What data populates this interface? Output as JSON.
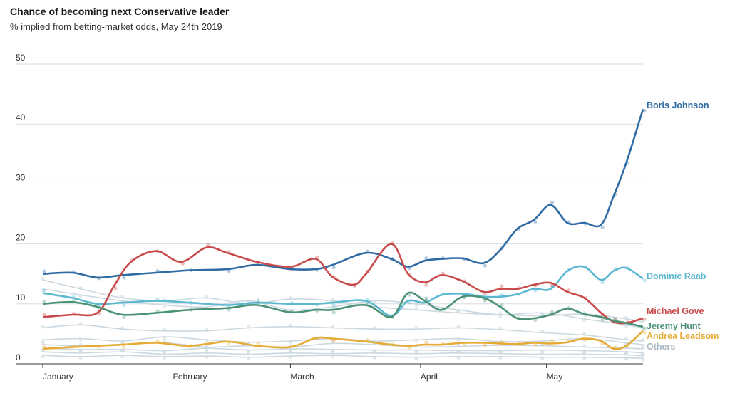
{
  "title": "Chance of becoming next Conservative leader",
  "subtitle": "% implied from betting-market odds, May 24th 2019",
  "chart_data": {
    "type": "line",
    "title": "Chance of becoming next Conservative leader",
    "subtitle": "% implied from betting-market odds, May 24th 2019",
    "x_ticks": [
      "January",
      "February",
      "March",
      "April",
      "May"
    ],
    "x_tick_days": [
      1,
      32,
      60,
      91,
      121
    ],
    "x_range_days": [
      1,
      144
    ],
    "ylim": [
      0,
      50
    ],
    "y_ticks": [
      0,
      10,
      20,
      30,
      40,
      50
    ],
    "grid": true,
    "legend": "direct labels at right end of lines",
    "series": [
      {
        "name": "Boris Johnson",
        "color": "#2e6aa3",
        "x": [
          1,
          8,
          14,
          20,
          28,
          36,
          45,
          52,
          60,
          66,
          70,
          78,
          84,
          88,
          92,
          96,
          101,
          106,
          110,
          114,
          118,
          122,
          126,
          130,
          134,
          137,
          140,
          144
        ],
        "y": [
          15,
          15.2,
          14.4,
          14.8,
          15.2,
          15.6,
          15.8,
          16.5,
          15.8,
          15.8,
          16.5,
          18.5,
          17.5,
          16.2,
          17.2,
          17.5,
          17.6,
          16.8,
          19,
          22.5,
          24,
          26.5,
          23.5,
          23.5,
          23.2,
          28,
          33.5,
          42.5
        ]
      },
      {
        "name": "Dominic Raab",
        "color": "#5bb8d1",
        "x": [
          1,
          8,
          14,
          20,
          28,
          36,
          45,
          52,
          60,
          66,
          70,
          78,
          84,
          88,
          92,
          96,
          101,
          106,
          110,
          114,
          118,
          122,
          126,
          130,
          134,
          137,
          140,
          144
        ],
        "y": [
          11.8,
          11,
          10,
          10.2,
          10.5,
          10.2,
          9.8,
          10.2,
          10,
          10,
          10.2,
          10.5,
          8,
          10.5,
          10.2,
          11.5,
          11.7,
          11.2,
          11.2,
          11.6,
          12.5,
          12.5,
          15.5,
          16.2,
          14,
          15.5,
          16,
          14.2
        ]
      },
      {
        "name": "Michael Gove",
        "color": "#c94a4a",
        "x": [
          1,
          8,
          14,
          18,
          22,
          28,
          34,
          40,
          45,
          52,
          60,
          66,
          70,
          75,
          78,
          84,
          88,
          92,
          96,
          101,
          106,
          110,
          114,
          118,
          122,
          126,
          130,
          134,
          137,
          140,
          144
        ],
        "y": [
          7.8,
          8.2,
          8.5,
          13,
          17,
          18.8,
          17,
          19.4,
          18.5,
          17,
          16.2,
          17.5,
          14.5,
          13.2,
          15,
          20,
          15,
          13.6,
          14.8,
          13.8,
          12,
          12.5,
          12.5,
          13.2,
          13.5,
          12,
          11,
          8.5,
          7,
          6.8,
          7.6
        ]
      },
      {
        "name": "Jeremy Hunt",
        "color": "#4a9276",
        "x": [
          1,
          8,
          14,
          20,
          28,
          36,
          45,
          52,
          60,
          66,
          70,
          78,
          84,
          88,
          92,
          96,
          101,
          106,
          110,
          114,
          118,
          122,
          126,
          130,
          134,
          137,
          140,
          144
        ],
        "y": [
          10,
          10.3,
          9.5,
          8.2,
          8.5,
          9,
          9.3,
          9.8,
          8.6,
          9,
          9,
          9.8,
          7.8,
          11.8,
          10.5,
          9,
          11.2,
          11,
          9.5,
          7.6,
          7.6,
          8.2,
          9.2,
          8.3,
          7.8,
          7.2,
          6.8,
          6.2
        ]
      },
      {
        "name": "Andrea Leadsom",
        "color": "#e6ab35",
        "x": [
          1,
          8,
          14,
          20,
          28,
          36,
          45,
          52,
          60,
          66,
          70,
          78,
          84,
          88,
          92,
          96,
          101,
          106,
          110,
          114,
          118,
          122,
          126,
          130,
          134,
          137,
          140,
          144
        ],
        "y": [
          2.5,
          2.8,
          3,
          3.2,
          3.5,
          3,
          3.7,
          3,
          2.8,
          4.3,
          4.2,
          3.7,
          3.2,
          3,
          3.2,
          3.2,
          3.5,
          3.5,
          3.4,
          3.3,
          3.5,
          3.4,
          3.6,
          4.2,
          3.8,
          2.5,
          3,
          5.5
        ]
      }
    ],
    "others": {
      "name": "Others",
      "color": "#ccd8e0",
      "x": [
        1,
        10,
        20,
        30,
        40,
        50,
        60,
        70,
        80,
        90,
        100,
        110,
        120,
        130,
        140,
        144
      ],
      "lines": [
        [
          14,
          12.5,
          11,
          10.5,
          11,
          10,
          10.8,
          10.5,
          9.5,
          9,
          8.5,
          8.2,
          8,
          8.3,
          7.5,
          7
        ],
        [
          12.5,
          11.5,
          10.5,
          9.8,
          9.5,
          10.5,
          9,
          9.5,
          10.5,
          10,
          9,
          8.2,
          8.5,
          7.5,
          6.5,
          6
        ],
        [
          6,
          6.5,
          5.8,
          5.5,
          5.5,
          6,
          6.2,
          6,
          5.8,
          5.8,
          6,
          5.7,
          5.2,
          4.8,
          4,
          3.8
        ],
        [
          4,
          4.2,
          3.8,
          4.5,
          4,
          3.6,
          3.8,
          4.2,
          3.8,
          4,
          4.2,
          3.7,
          3.8,
          4.2,
          3.5,
          3.2
        ],
        [
          3.2,
          3,
          3.2,
          3.5,
          2.8,
          3,
          2.8,
          3.4,
          3.2,
          2.8,
          2.9,
          3.1,
          3,
          2.8,
          2.6,
          2.5
        ],
        [
          2.6,
          2.4,
          2.4,
          2.2,
          2.6,
          2.3,
          2.5,
          2.4,
          2.3,
          2.3,
          2.2,
          2.2,
          2.3,
          2.2,
          2,
          1.8
        ],
        [
          2,
          1.8,
          2,
          1.6,
          1.8,
          1.6,
          1.8,
          1.7,
          1.8,
          1.7,
          1.8,
          1.7,
          1.6,
          1.6,
          1.5,
          1.3
        ],
        [
          1.4,
          1.2,
          1.4,
          1.2,
          1.3,
          1.1,
          1.3,
          1.4,
          1.2,
          1.1,
          1.2,
          1.2,
          1.1,
          1.1,
          1,
          0.9
        ]
      ]
    }
  },
  "labels": {
    "boris": "Boris Johnson",
    "raab": "Dominic Raab",
    "gove": "Michael Gove",
    "hunt": "Jeremy Hunt",
    "leadsom": "Andrea Leadsom",
    "others": "Others"
  }
}
